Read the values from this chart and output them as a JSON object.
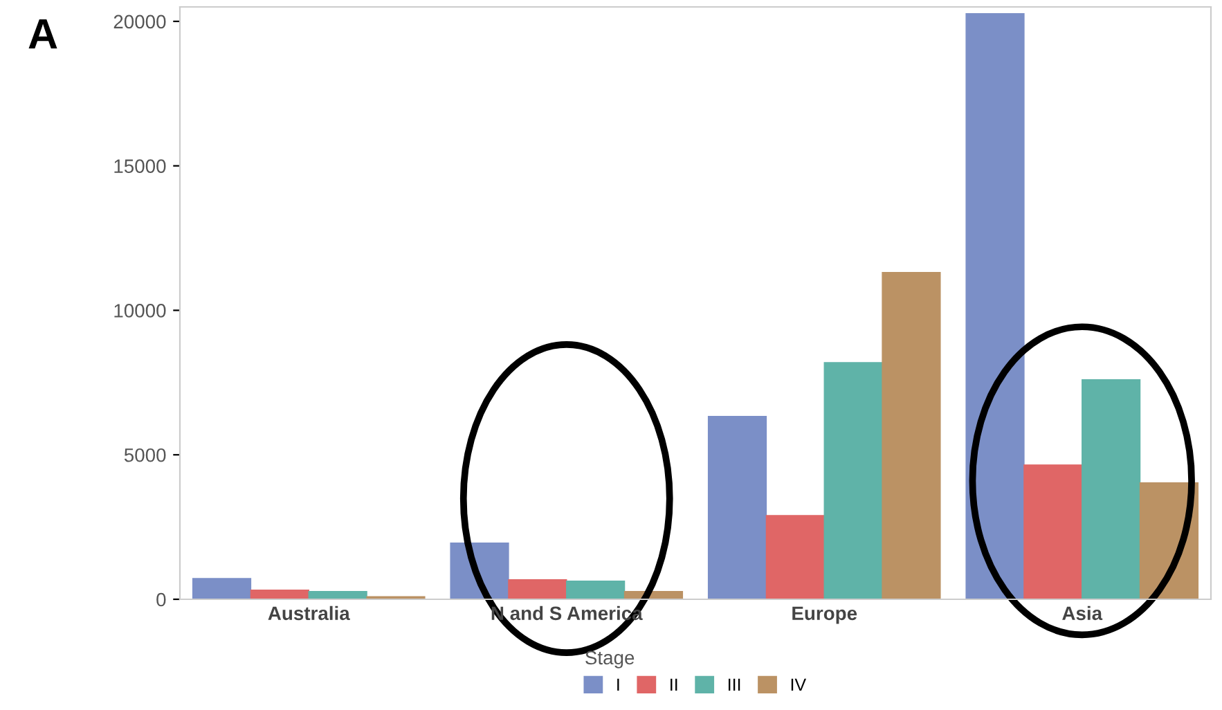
{
  "chart_data": {
    "type": "bar",
    "categories": [
      "Australia",
      "N and S America",
      "Europe",
      "Asia"
    ],
    "series": [
      {
        "name": "I",
        "color": "#7b8fc7",
        "values": [
          720,
          1950,
          6330,
          20270
        ]
      },
      {
        "name": "II",
        "color": "#e06666",
        "values": [
          320,
          680,
          2900,
          4650
        ]
      },
      {
        "name": "III",
        "color": "#5fb3a8",
        "values": [
          270,
          630,
          8190,
          7600
        ]
      },
      {
        "name": "IV",
        "color": "#bb9264",
        "values": [
          90,
          270,
          11310,
          4030
        ]
      }
    ],
    "legend_title": "Stage",
    "legend": "bottom",
    "ylim": [
      0,
      20500
    ],
    "yticks": [
      0,
      5000,
      10000,
      15000,
      20000
    ],
    "annotations": [
      "A"
    ],
    "grid": false
  }
}
